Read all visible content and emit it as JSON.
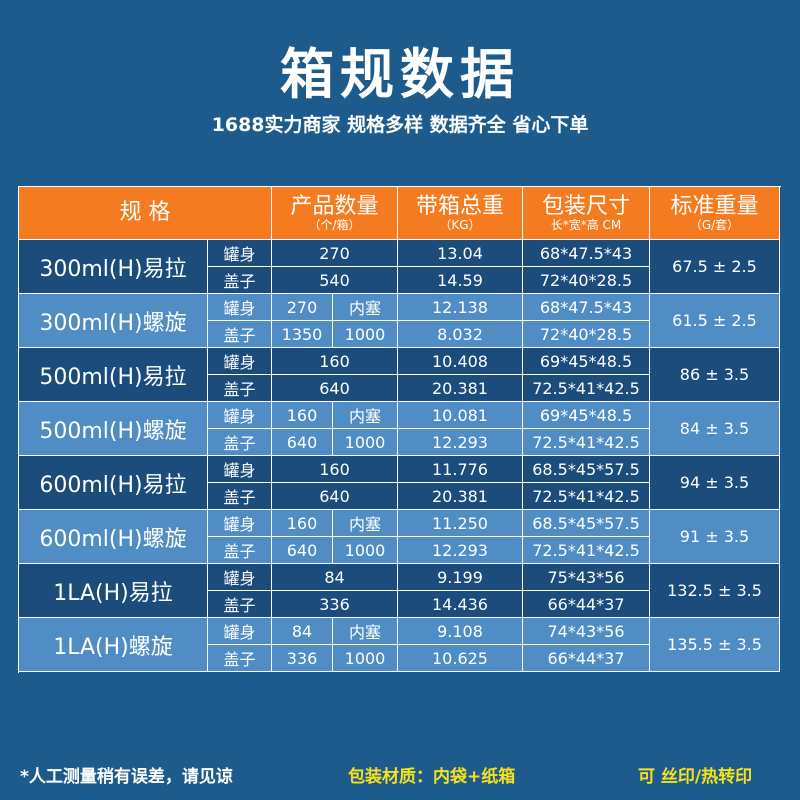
{
  "header": {
    "title": "箱规数据",
    "subtitle": "1688实力商家 规格多样 数据齐全 省心下单"
  },
  "table": {
    "columns": [
      {
        "label": "规    格"
      },
      {
        "label": "产品数量",
        "sub": "（个/箱）"
      },
      {
        "label": "带箱总重",
        "sub": "（KG）"
      },
      {
        "label": "包装尺寸",
        "sub": "长*宽*高 CM"
      },
      {
        "label": "标准重量",
        "sub": "（G/套）"
      }
    ],
    "groups": [
      {
        "spec": "300ml(H)易拉",
        "std": "67.5 ± 2.5",
        "rows": [
          {
            "part": "罐身",
            "qty": "270",
            "weight": "13.04",
            "size": "68*47.5*43"
          },
          {
            "part": "盖子",
            "qty": "540",
            "weight": "14.59",
            "size": "72*40*28.5"
          }
        ]
      },
      {
        "spec": "300ml(H)螺旋",
        "std": "61.5 ± 2.5",
        "rows": [
          {
            "part": "罐身",
            "qty": "270",
            "extra": "内塞",
            "weight": "12.138",
            "size": "68*47.5*43"
          },
          {
            "part": "盖子",
            "qty": "1350",
            "extra": "1000",
            "weight": "8.032",
            "size": "72*40*28.5"
          }
        ]
      },
      {
        "spec": "500ml(H)易拉",
        "std": "86 ± 3.5",
        "rows": [
          {
            "part": "罐身",
            "qty": "160",
            "weight": "10.408",
            "size": "69*45*48.5"
          },
          {
            "part": "盖子",
            "qty": "640",
            "weight": "20.381",
            "size": "72.5*41*42.5"
          }
        ]
      },
      {
        "spec": "500ml(H)螺旋",
        "std": "84 ± 3.5",
        "rows": [
          {
            "part": "罐身",
            "qty": "160",
            "extra": "内塞",
            "weight": "10.081",
            "size": "69*45*48.5"
          },
          {
            "part": "盖子",
            "qty": "640",
            "extra": "1000",
            "weight": "12.293",
            "size": "72.5*41*42.5"
          }
        ]
      },
      {
        "spec": "600ml(H)易拉",
        "std": "94 ± 3.5",
        "rows": [
          {
            "part": "罐身",
            "qty": "160",
            "weight": "11.776",
            "size": "68.5*45*57.5"
          },
          {
            "part": "盖子",
            "qty": "640",
            "weight": "20.381",
            "size": "72.5*41*42.5"
          }
        ]
      },
      {
        "spec": "600ml(H)螺旋",
        "std": "91 ± 3.5",
        "rows": [
          {
            "part": "罐身",
            "qty": "160",
            "extra": "内塞",
            "weight": "11.250",
            "size": "68.5*45*57.5"
          },
          {
            "part": "盖子",
            "qty": "640",
            "extra": "1000",
            "weight": "12.293",
            "size": "72.5*41*42.5"
          }
        ]
      },
      {
        "spec": "1LA(H)易拉",
        "std": "132.5 ± 3.5",
        "rows": [
          {
            "part": "罐身",
            "qty": "84",
            "weight": "9.199",
            "size": "75*43*56"
          },
          {
            "part": "盖子",
            "qty": "336",
            "weight": "14.436",
            "size": "66*44*37"
          }
        ]
      },
      {
        "spec": "1LA(H)螺旋",
        "std": "135.5 ± 3.5",
        "rows": [
          {
            "part": "罐身",
            "qty": "84",
            "extra": "内塞",
            "weight": "9.108",
            "size": "74*43*56"
          },
          {
            "part": "盖子",
            "qty": "336",
            "extra": "1000",
            "weight": "10.625",
            "size": "66*44*37"
          }
        ]
      }
    ]
  },
  "footer": {
    "note": "*人工测量稍有误差，请见谅",
    "material": "包装材质：内袋+纸箱",
    "print": "可 丝印/热转印"
  }
}
